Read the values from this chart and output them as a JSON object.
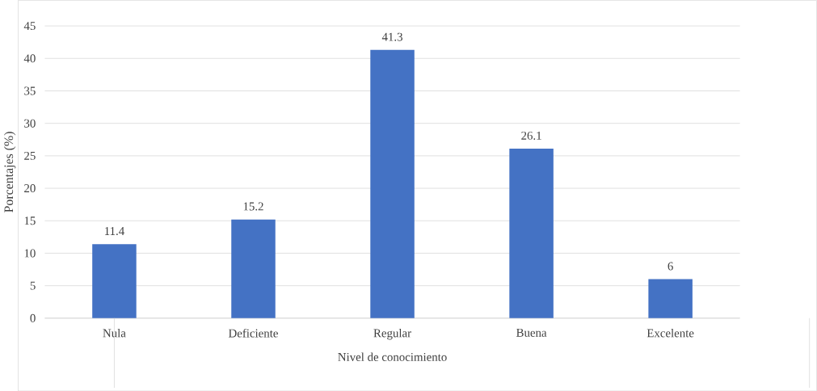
{
  "chart_data": {
    "type": "bar",
    "xlabel": "Nivel de conocimiento",
    "ylabel": "Porcentajes (%)",
    "categories": [
      "Nula",
      "Deficiente",
      "Regular",
      "Buena",
      "Excelente"
    ],
    "values": [
      11.4,
      15.2,
      41.3,
      26.1,
      6
    ],
    "color": "#4472c4",
    "ylim": [
      0,
      45
    ],
    "yticks": [
      0,
      5,
      10,
      15,
      20,
      25,
      30,
      35,
      40,
      45
    ],
    "grid": "y",
    "data_labels": true
  }
}
